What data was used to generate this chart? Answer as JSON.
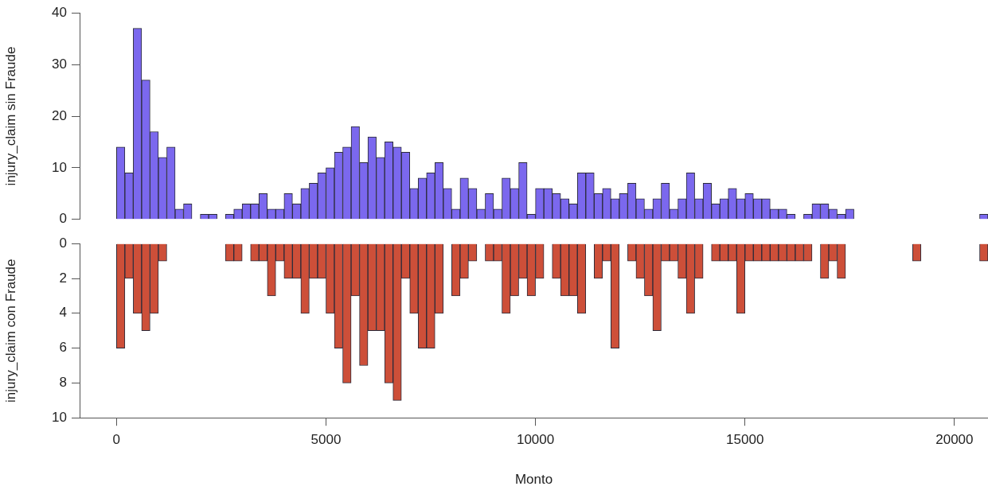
{
  "chart_data": [
    {
      "type": "histogram",
      "ylabel": "injury_claim sin Fraude",
      "color": "#7b68ee",
      "xlim": [
        -880,
        20800
      ],
      "ylim": [
        0,
        40
      ],
      "yticks": [
        0,
        10,
        20,
        30,
        40
      ],
      "tick_labels": "y",
      "bins": [
        0,
        200,
        400,
        600,
        800,
        1000,
        1200,
        1400,
        1600,
        1800,
        2000,
        2200,
        2400,
        2600,
        2800,
        3000,
        3200,
        3400,
        3600,
        3800,
        4000,
        4200,
        4400,
        4600,
        4800,
        5000,
        5200,
        5400,
        5600,
        5800,
        6000,
        6200,
        6400,
        6600,
        6800,
        7000,
        7200,
        7400,
        7600,
        7800,
        8000,
        8200,
        8400,
        8600,
        8800,
        9000,
        9200,
        9400,
        9600,
        9800,
        10000,
        10200,
        10400,
        10600,
        10800,
        11000,
        11200,
        11400,
        11600,
        11800,
        12000,
        12200,
        12400,
        12600,
        12800,
        13000,
        13200,
        13400,
        13600,
        13800,
        14000,
        14200,
        14400,
        14600,
        14800,
        15000,
        15200,
        15400,
        15600,
        15800,
        16000,
        16200,
        16400,
        16600,
        16800,
        17000,
        17200,
        17400,
        17600,
        17800,
        18000,
        18200,
        18400,
        18600,
        18800,
        19000,
        19200,
        19400,
        19600,
        19800,
        20000,
        20200,
        20400,
        20600,
        20800
      ],
      "values": [
        14,
        9,
        37,
        27,
        17,
        12,
        14,
        2,
        3,
        0,
        1,
        1,
        0,
        1,
        2,
        3,
        3,
        5,
        2,
        2,
        5,
        3,
        6,
        7,
        9,
        10,
        13,
        14,
        18,
        11,
        16,
        12,
        15,
        14,
        13,
        6,
        8,
        9,
        11,
        6,
        2,
        8,
        6,
        2,
        5,
        2,
        8,
        6,
        11,
        1,
        6,
        6,
        5,
        4,
        3,
        9,
        9,
        5,
        6,
        4,
        5,
        7,
        4,
        2,
        4,
        7,
        2,
        4,
        9,
        4,
        7,
        3,
        4,
        6,
        4,
        5,
        4,
        4,
        2,
        2,
        1,
        0,
        1,
        3,
        3,
        2,
        1,
        2,
        0,
        0,
        0,
        0,
        0,
        0,
        0,
        0,
        0,
        0,
        0,
        0,
        0,
        0,
        0,
        1
      ]
    },
    {
      "type": "histogram",
      "ylabel": "injury_claim con Fraude",
      "xlabel": "Monto",
      "color": "#cd4f39",
      "xlim": [
        -880,
        20800
      ],
      "xticks": [
        0,
        5000,
        10000,
        15000,
        20000
      ],
      "ylim": [
        10,
        0
      ],
      "yticks": [
        0,
        2,
        4,
        6,
        8,
        10
      ],
      "bins": [
        0,
        200,
        400,
        600,
        800,
        1000,
        1200,
        1400,
        1600,
        1800,
        2000,
        2200,
        2400,
        2600,
        2800,
        3000,
        3200,
        3400,
        3600,
        3800,
        4000,
        4200,
        4400,
        4600,
        4800,
        5000,
        5200,
        5400,
        5600,
        5800,
        6000,
        6200,
        6400,
        6600,
        6800,
        7000,
        7200,
        7400,
        7600,
        7800,
        8000,
        8200,
        8400,
        8600,
        8800,
        9000,
        9200,
        9400,
        9600,
        9800,
        10000,
        10200,
        10400,
        10600,
        10800,
        11000,
        11200,
        11400,
        11600,
        11800,
        12000,
        12200,
        12400,
        12600,
        12800,
        13000,
        13200,
        13400,
        13600,
        13800,
        14000,
        14200,
        14400,
        14600,
        14800,
        15000,
        15200,
        15400,
        15600,
        15800,
        16000,
        16200,
        16400,
        16600,
        16800,
        17000,
        17200,
        17400,
        17600,
        17800,
        18000,
        18200,
        18400,
        18600,
        18800,
        19000,
        19200,
        19400,
        19600,
        19800,
        20000,
        20200,
        20400,
        20600,
        20800
      ],
      "values": [
        6,
        2,
        4,
        5,
        4,
        1,
        0,
        0,
        0,
        0,
        0,
        0,
        0,
        1,
        1,
        0,
        1,
        1,
        3,
        1,
        2,
        2,
        4,
        2,
        2,
        4,
        6,
        8,
        3,
        7,
        5,
        5,
        8,
        9,
        2,
        4,
        6,
        6,
        4,
        0,
        3,
        2,
        1,
        0,
        1,
        1,
        4,
        3,
        2,
        3,
        2,
        0,
        2,
        3,
        3,
        4,
        0,
        2,
        1,
        6,
        0,
        1,
        2,
        3,
        5,
        1,
        1,
        2,
        4,
        2,
        0,
        1,
        1,
        1,
        4,
        1,
        1,
        1,
        1,
        1,
        1,
        1,
        1,
        0,
        2,
        1,
        2,
        0,
        0,
        0,
        0,
        0,
        0,
        0,
        0,
        1,
        0,
        0,
        0,
        0,
        0,
        0,
        0,
        1
      ]
    }
  ]
}
